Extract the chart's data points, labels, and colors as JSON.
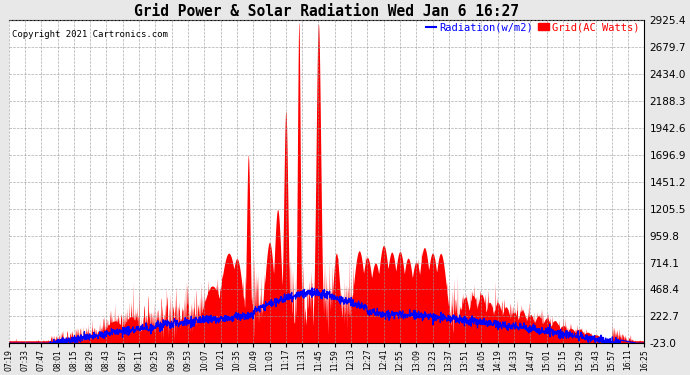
{
  "title": "Grid Power & Solar Radiation Wed Jan 6 16:27",
  "copyright": "Copyright 2021 Cartronics.com",
  "legend_radiation": "Radiation(w/m2)",
  "legend_grid": "Grid(AC Watts)",
  "yticks": [
    -23.0,
    222.7,
    468.4,
    714.1,
    959.8,
    1205.5,
    1451.2,
    1696.9,
    1942.6,
    2188.3,
    2434.0,
    2679.7,
    2925.4
  ],
  "ymin": -23.0,
  "ymax": 2925.4,
  "bg_color": "#e8e8e8",
  "plot_bg_color": "#ffffff",
  "grid_color": "#999999",
  "fill_color": "#ff0000",
  "line_color": "#0000ff",
  "title_color": "#000000",
  "copyright_color": "#000000",
  "xtick_labels": [
    "07:19",
    "07:33",
    "07:47",
    "08:01",
    "08:15",
    "08:29",
    "08:43",
    "08:57",
    "09:11",
    "09:25",
    "09:39",
    "09:53",
    "10:07",
    "10:21",
    "10:35",
    "10:49",
    "11:03",
    "11:17",
    "11:31",
    "11:45",
    "11:59",
    "12:13",
    "12:27",
    "12:41",
    "12:55",
    "13:09",
    "13:23",
    "13:37",
    "13:51",
    "14:05",
    "14:19",
    "14:33",
    "14:47",
    "15:01",
    "15:15",
    "15:29",
    "15:43",
    "15:57",
    "16:11",
    "16:25"
  ]
}
